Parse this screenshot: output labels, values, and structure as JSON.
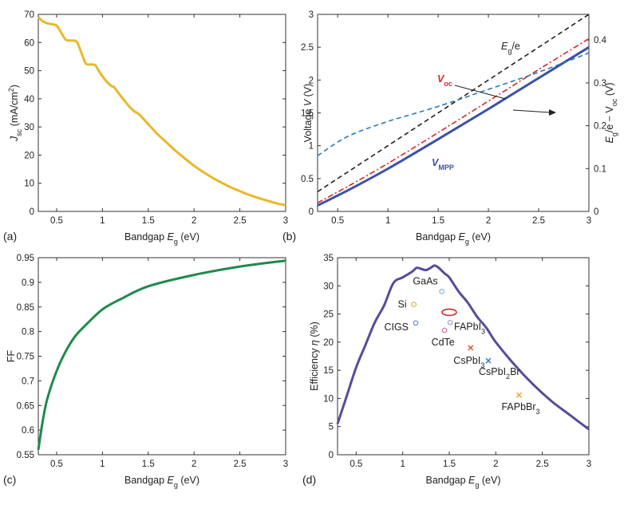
{
  "chart_data": [
    {
      "id": "a",
      "type": "line",
      "panel_label": "(a)",
      "xlabel": "Bandgap",
      "xlabel_sym": "E",
      "xlabel_sub": "g",
      "xlabel_unit": " (eV)",
      "ylabel_sym": "J",
      "ylabel_sub": "sc",
      "ylabel_unit": " (mA/cm",
      "ylabel_sup": "2",
      "ylabel_end": ")",
      "xlim": [
        0.3,
        3.0
      ],
      "ylim": [
        0,
        70
      ],
      "xticks": [
        0.5,
        1,
        1.5,
        2,
        2.5,
        3
      ],
      "xtick_labels": [
        "0.5",
        "1",
        "1.5",
        "2",
        "2.5",
        "3"
      ],
      "yticks": [
        0,
        10,
        20,
        30,
        40,
        50,
        60,
        70
      ],
      "ytick_labels": [
        "0",
        "10",
        "20",
        "30",
        "40",
        "50",
        "60",
        "70"
      ],
      "series": [
        {
          "name": "Jsc",
          "color": "#e8b82a",
          "x": [
            0.3,
            0.35,
            0.4,
            0.45,
            0.5,
            0.55,
            0.6,
            0.65,
            0.72,
            0.78,
            0.82,
            0.87,
            0.92,
            0.95,
            1.0,
            1.05,
            1.1,
            1.13,
            1.2,
            1.3,
            1.35,
            1.4,
            1.5,
            1.6,
            1.7,
            1.8,
            1.9,
            2.0,
            2.1,
            2.2,
            2.3,
            2.4,
            2.5,
            2.6,
            2.7,
            2.8,
            2.9,
            3.0
          ],
          "y": [
            69,
            67.5,
            66.8,
            66.5,
            66,
            63.5,
            61,
            60.7,
            60.2,
            55.5,
            52.5,
            52.2,
            52.0,
            50.5,
            48,
            46,
            44.5,
            44,
            41,
            37,
            35.5,
            34.5,
            31,
            27.5,
            24.5,
            21.5,
            18.8,
            16.2,
            14,
            12,
            10.2,
            8.6,
            7.2,
            5.9,
            4.8,
            3.8,
            2.9,
            2.2
          ]
        }
      ]
    },
    {
      "id": "b",
      "type": "line",
      "panel_label": "(b)",
      "xlabel": "Bandgap",
      "xlabel_sym": "E",
      "xlabel_sub": "g",
      "xlabel_unit": " (eV)",
      "ylabel": "Voltage",
      "ylabel_sym": "V",
      "ylabel_unit": " (V)",
      "y2label_sym": "E",
      "y2label_sub": "g",
      "y2label_mid": "/e − V",
      "y2label_sub2": "oc",
      "y2label_unit": " (V)",
      "xlim": [
        0.3,
        3.0
      ],
      "ylim": [
        0,
        3
      ],
      "y2lim": [
        0,
        0.46
      ],
      "xticks": [
        0.5,
        1,
        1.5,
        2,
        2.5,
        3
      ],
      "xtick_labels": [
        "0.5",
        "1",
        "1.5",
        "2",
        "2.5",
        "3"
      ],
      "yticks": [
        0,
        0.5,
        1,
        1.5,
        2,
        2.5,
        3
      ],
      "ytick_labels": [
        "0",
        "0.5",
        "1",
        "1.5",
        "2",
        "2.5",
        "3"
      ],
      "y2ticks": [
        0,
        0.1,
        0.2,
        0.3,
        0.4
      ],
      "y2tick_labels": [
        "0",
        "0.1",
        "0.2",
        "0.3",
        "0.4"
      ],
      "annotations": [
        {
          "sym": "E",
          "sub": "g",
          "rest": "/e",
          "color": "#222222"
        },
        {
          "sym": "V",
          "sub": "oc",
          "rest": "",
          "color": "#d62728"
        },
        {
          "sym": "V",
          "sub": "MPP",
          "rest": "",
          "color": "#3a52a6"
        }
      ],
      "series": [
        {
          "name": "Eg/e",
          "color": "#222222",
          "dash": "dashed",
          "axis": "left",
          "x": [
            0.3,
            3.0
          ],
          "y": [
            0.3,
            3.0
          ]
        },
        {
          "name": "Voc",
          "color": "#d62728",
          "dash": "dashdot",
          "axis": "left",
          "x": [
            0.3,
            0.6,
            1.0,
            1.5,
            2.0,
            2.5,
            3.0
          ],
          "y": [
            0.13,
            0.38,
            0.73,
            1.2,
            1.68,
            2.16,
            2.63
          ]
        },
        {
          "name": "VMPP",
          "color": "#3a52a6",
          "dash": "solid",
          "axis": "left",
          "x": [
            0.3,
            0.6,
            1.0,
            1.5,
            2.0,
            2.5,
            3.0
          ],
          "y": [
            0.09,
            0.32,
            0.65,
            1.1,
            1.56,
            2.03,
            2.5
          ]
        },
        {
          "name": "Eg/e - Voc",
          "color": "#2a7ab8",
          "dash": "dashed",
          "axis": "right",
          "x": [
            0.3,
            0.6,
            1.0,
            1.5,
            2.0,
            2.5,
            3.0
          ],
          "y": [
            0.13,
            0.175,
            0.21,
            0.245,
            0.285,
            0.325,
            0.37
          ]
        }
      ]
    },
    {
      "id": "c",
      "type": "line",
      "panel_label": "(c)",
      "xlabel": "Bandgap",
      "xlabel_sym": "E",
      "xlabel_sub": "g",
      "xlabel_unit": " (eV)",
      "ylabel": "FF",
      "xlim": [
        0.3,
        3.0
      ],
      "ylim": [
        0.55,
        0.95
      ],
      "xticks": [
        0.5,
        1,
        1.5,
        2,
        2.5,
        3
      ],
      "xtick_labels": [
        "0.5",
        "1",
        "1.5",
        "2",
        "2.5",
        "3"
      ],
      "yticks": [
        0.55,
        0.6,
        0.65,
        0.7,
        0.75,
        0.8,
        0.85,
        0.9,
        0.95
      ],
      "ytick_labels": [
        "0.55",
        "0.6",
        "0.65",
        "0.7",
        "0.75",
        "0.8",
        "0.85",
        "0.9",
        "0.95"
      ],
      "series": [
        {
          "name": "FF",
          "color": "#1f8a4c",
          "x": [
            0.3,
            0.35,
            0.4,
            0.5,
            0.6,
            0.7,
            0.8,
            1.0,
            1.2,
            1.5,
            2.0,
            2.5,
            3.0
          ],
          "y": [
            0.56,
            0.62,
            0.665,
            0.72,
            0.76,
            0.79,
            0.81,
            0.845,
            0.866,
            0.892,
            0.915,
            0.932,
            0.944
          ]
        }
      ]
    },
    {
      "id": "d",
      "type": "line",
      "panel_label": "(d)",
      "xlabel": "Bandgap",
      "xlabel_sym": "E",
      "xlabel_sub": "g",
      "xlabel_unit": " (eV)",
      "ylabel": "Efficiency",
      "ylabel_sym": "η",
      "ylabel_unit": " (%)",
      "xlim": [
        0.3,
        3.0
      ],
      "ylim": [
        0,
        35
      ],
      "xticks": [
        0.5,
        1,
        1.5,
        2,
        2.5,
        3
      ],
      "xtick_labels": [
        "0.5",
        "1",
        "1.5",
        "2",
        "2.5",
        "3"
      ],
      "yticks": [
        0,
        5,
        10,
        15,
        20,
        25,
        30,
        35
      ],
      "ytick_labels": [
        "0",
        "5",
        "10",
        "15",
        "20",
        "25",
        "30",
        "35"
      ],
      "series": [
        {
          "name": "SQ limit",
          "color": "#5a4a9a",
          "x": [
            0.3,
            0.4,
            0.5,
            0.6,
            0.7,
            0.8,
            0.9,
            1.0,
            1.1,
            1.15,
            1.2,
            1.25,
            1.3,
            1.34,
            1.38,
            1.45,
            1.5,
            1.6,
            1.7,
            1.8,
            1.9,
            2.0,
            2.2,
            2.4,
            2.6,
            2.8,
            3.0
          ],
          "y": [
            5.5,
            10.5,
            15.5,
            19.5,
            23.5,
            26.5,
            30.5,
            31.5,
            32.5,
            33.2,
            33.0,
            32.8,
            33.2,
            33.6,
            33.3,
            32.2,
            31.5,
            29.0,
            27.0,
            24.5,
            22.5,
            20.0,
            16.0,
            12.5,
            9.5,
            7.0,
            4.5
          ]
        }
      ],
      "materials": [
        {
          "label": "GaAs",
          "x": 1.42,
          "y": 29.0,
          "marker": "o",
          "color": "#6fa8dc"
        },
        {
          "label": "Si",
          "x": 1.12,
          "y": 26.7,
          "marker": "o",
          "color": "#c9a83b"
        },
        {
          "label": "CIGS",
          "x": 1.14,
          "y": 23.4,
          "marker": "o",
          "color": "#4a7fc1"
        },
        {
          "label": "CdTe",
          "x": 1.45,
          "y": 22.1,
          "marker": "o",
          "color": "#c0609a"
        },
        {
          "label": "FAPbI",
          "sub": "3",
          "x": 1.5,
          "y": 25.3,
          "marker": "ellipse",
          "color": "#d62728"
        },
        {
          "label": "FAPbI3-point",
          "x": 1.51,
          "y": 23.5,
          "marker": "o",
          "color": "#9a8ac8"
        },
        {
          "label": "CsPbI",
          "sub": "3",
          "x": 1.73,
          "y": 19.0,
          "marker": "x",
          "color": "#d6502a"
        },
        {
          "label": "CsPbI",
          "sub": "2",
          "tail": "Br",
          "x": 1.92,
          "y": 16.7,
          "marker": "x",
          "color": "#3a6fc8"
        },
        {
          "label": "FAPbBr",
          "sub": "3",
          "x": 2.25,
          "y": 10.6,
          "marker": "x",
          "color": "#e8a32a"
        }
      ]
    }
  ]
}
